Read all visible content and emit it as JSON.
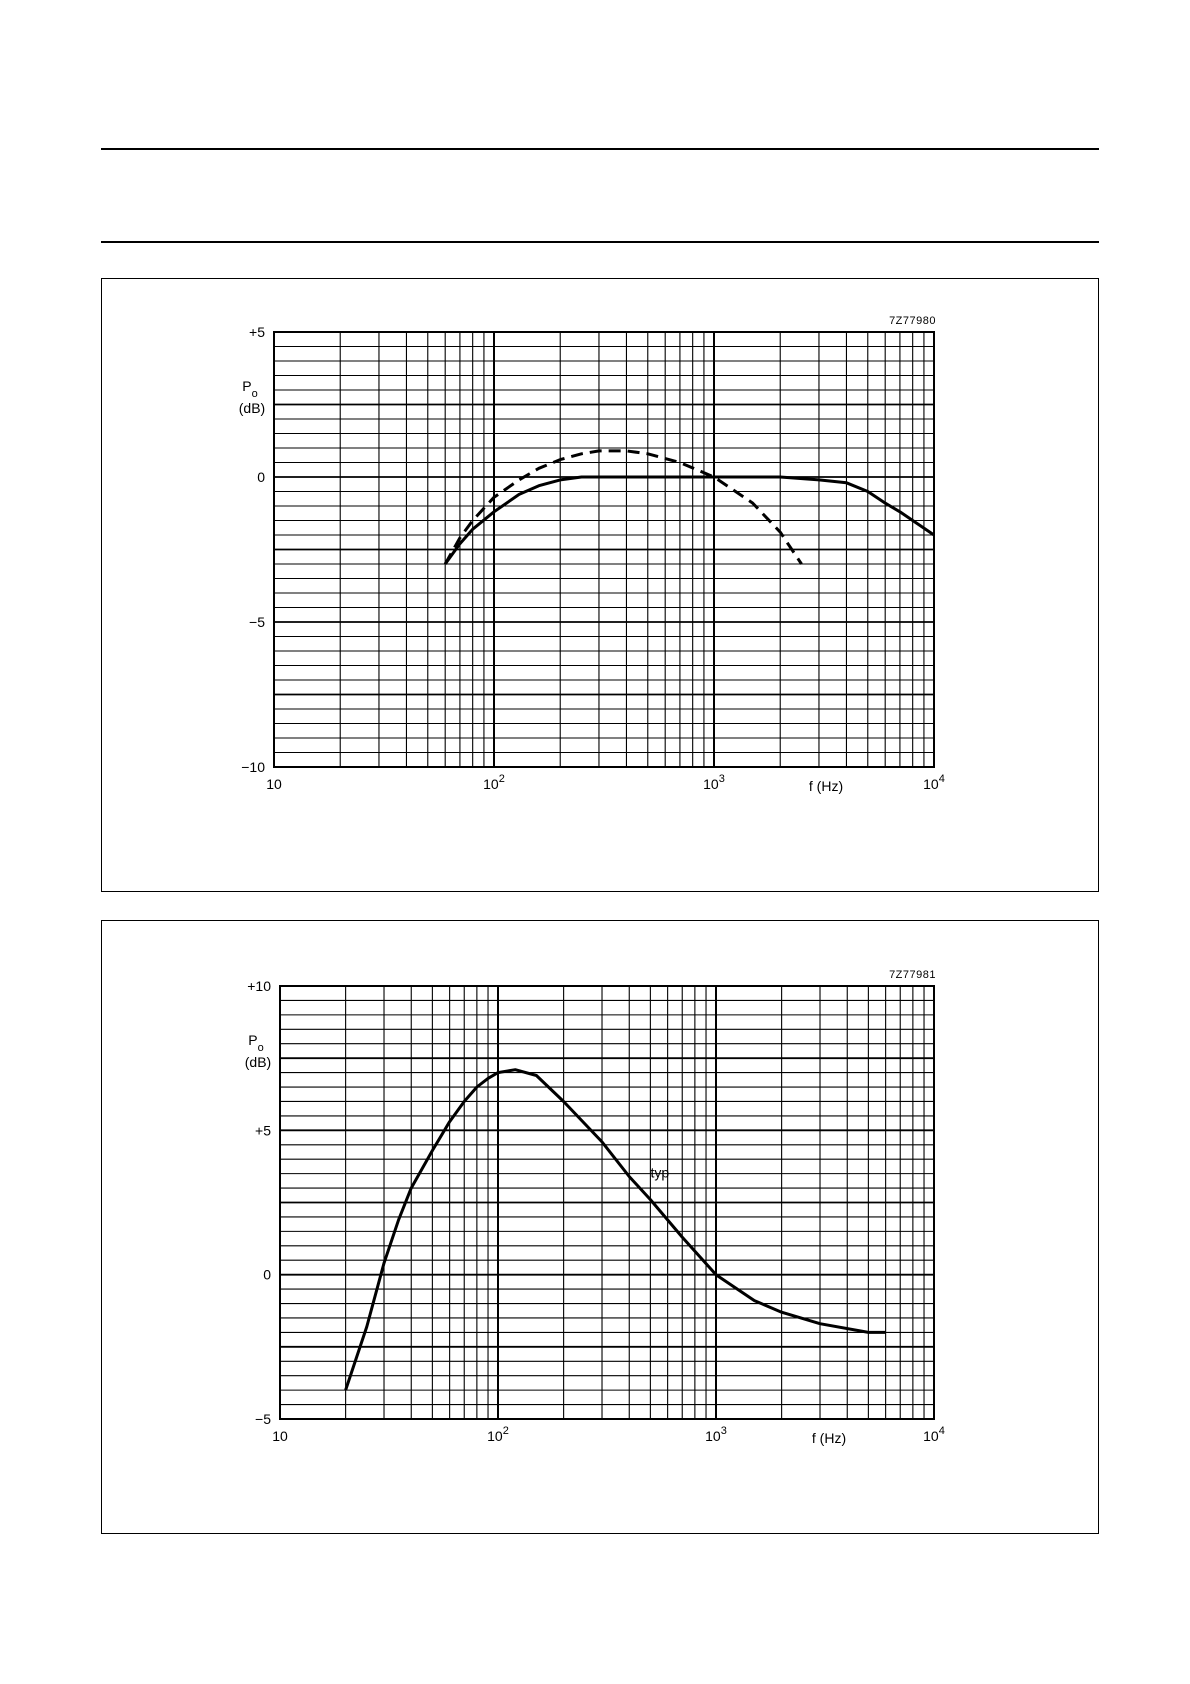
{
  "chart_data": [
    {
      "type": "line",
      "figure_code": "7Z77980",
      "xscale": "log",
      "xlim": [
        10,
        10000
      ],
      "ylim": [
        -10,
        5
      ],
      "ylabel_main": "P",
      "ylabel_sub": "o",
      "ylabel_unit": "(dB)",
      "xlabel": "f (Hz)",
      "x_ticks": [
        {
          "value": 10,
          "base": "10",
          "exp": ""
        },
        {
          "value": 100,
          "base": "10",
          "exp": "2"
        },
        {
          "value": 1000,
          "base": "10",
          "exp": "3"
        },
        {
          "value": 10000,
          "base": "10",
          "exp": "4"
        }
      ],
      "y_ticks": [
        {
          "value": 5,
          "label": "+5"
        },
        {
          "value": 0,
          "label": "0"
        },
        {
          "value": -5,
          "label": "−5"
        },
        {
          "value": -10,
          "label": "−10"
        }
      ],
      "grid": true,
      "series": [
        {
          "style": "solid",
          "x": [
            60,
            70,
            80,
            100,
            130,
            160,
            200,
            250,
            300,
            500,
            1000,
            2000,
            3000,
            4000,
            5000,
            6000,
            7000,
            8000,
            10000
          ],
          "y": [
            -3.0,
            -2.3,
            -1.8,
            -1.2,
            -0.6,
            -0.3,
            -0.1,
            0.0,
            0.0,
            0.0,
            0.0,
            0.0,
            -0.1,
            -0.2,
            -0.5,
            -0.9,
            -1.2,
            -1.5,
            -2.0
          ]
        },
        {
          "style": "dashed",
          "x": [
            60,
            70,
            80,
            100,
            130,
            160,
            200,
            250,
            300,
            400,
            500,
            700,
            1000,
            1500,
            2000,
            2500
          ],
          "y": [
            -3.0,
            -2.1,
            -1.5,
            -0.7,
            -0.1,
            0.3,
            0.6,
            0.8,
            0.9,
            0.9,
            0.8,
            0.5,
            0.0,
            -0.9,
            -1.9,
            -3.0
          ]
        }
      ]
    },
    {
      "type": "line",
      "figure_code": "7Z77981",
      "xscale": "log",
      "xlim": [
        10,
        10000
      ],
      "ylim": [
        -5,
        10
      ],
      "ylabel_main": "P",
      "ylabel_sub": "o",
      "ylabel_unit": "(dB)",
      "xlabel": "f (Hz)",
      "x_ticks": [
        {
          "value": 10,
          "base": "10",
          "exp": ""
        },
        {
          "value": 100,
          "base": "10",
          "exp": "2"
        },
        {
          "value": 1000,
          "base": "10",
          "exp": "3"
        },
        {
          "value": 10000,
          "base": "10",
          "exp": "4"
        }
      ],
      "y_ticks": [
        {
          "value": 10,
          "label": "+10"
        },
        {
          "value": 5,
          "label": "+5"
        },
        {
          "value": 0,
          "label": "0"
        },
        {
          "value": -5,
          "label": "−5"
        }
      ],
      "grid": true,
      "annotations": [
        {
          "text": "typ",
          "x": 480,
          "y": 3.5
        }
      ],
      "series": [
        {
          "style": "solid",
          "x": [
            20,
            25,
            30,
            35,
            40,
            50,
            60,
            70,
            80,
            90,
            100,
            120,
            150,
            200,
            300,
            400,
            500,
            700,
            1000,
            1500,
            2000,
            3000,
            5000,
            6000
          ],
          "y": [
            -4.0,
            -1.8,
            0.4,
            1.9,
            3.0,
            4.3,
            5.3,
            6.0,
            6.5,
            6.8,
            7.0,
            7.1,
            6.9,
            6.0,
            4.6,
            3.4,
            2.6,
            1.3,
            0.0,
            -0.9,
            -1.3,
            -1.7,
            -2.0,
            -2.0
          ]
        }
      ]
    }
  ]
}
